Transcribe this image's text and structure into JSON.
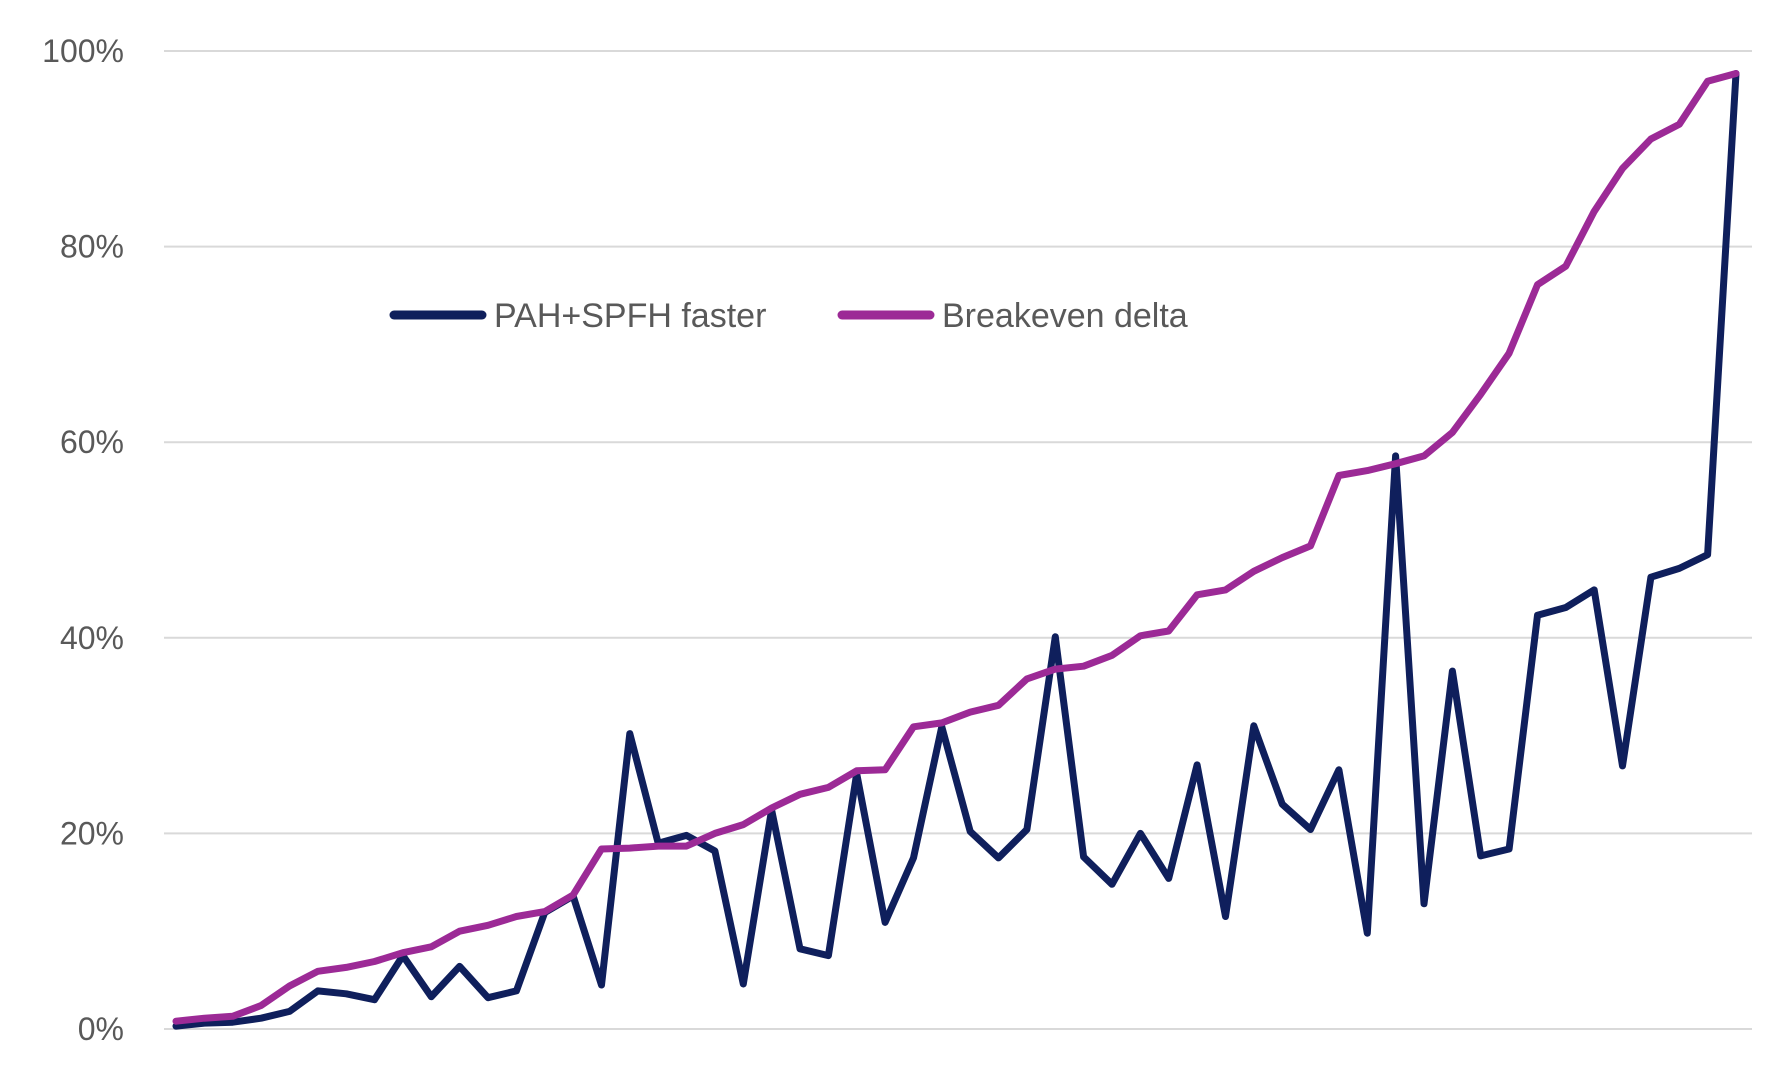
{
  "chart_data": {
    "type": "line",
    "title": "",
    "xlabel": "",
    "ylabel": "",
    "ylim": [
      0,
      100
    ],
    "y_ticks": [
      "0%",
      "20%",
      "40%",
      "60%",
      "80%",
      "100%"
    ],
    "y_tick_values": [
      0,
      20,
      40,
      60,
      80,
      100
    ],
    "grid": true,
    "legend_position": "upper-left-inside",
    "series": [
      {
        "name": "PAH+SPFH faster",
        "color": "#0f1f5c",
        "values": [
          0.3,
          0.6,
          0.7,
          1.1,
          1.8,
          3.9,
          3.6,
          3.0,
          7.5,
          3.3,
          6.4,
          3.2,
          3.9,
          11.9,
          13.6,
          4.5,
          30.2,
          19.0,
          19.8,
          18.2,
          4.6,
          22.4,
          8.2,
          7.5,
          26.1,
          10.9,
          17.5,
          30.9,
          20.2,
          17.5,
          20.4,
          40.1,
          17.6,
          14.8,
          20.0,
          15.4,
          27.0,
          11.5,
          31.0,
          23.0,
          20.4,
          26.5,
          9.8,
          58.6,
          12.8,
          36.6,
          17.7,
          18.4,
          42.3,
          43.1,
          44.9,
          26.9,
          46.2,
          47.1,
          48.5,
          97.7
        ]
      },
      {
        "name": "Breakeven delta",
        "color": "#9c2a96",
        "values": [
          0.8,
          1.1,
          1.3,
          2.4,
          4.4,
          5.9,
          6.3,
          6.9,
          7.8,
          8.4,
          10.0,
          10.6,
          11.5,
          12.0,
          13.7,
          18.4,
          18.5,
          18.7,
          18.7,
          20.0,
          20.9,
          22.6,
          24.0,
          24.7,
          26.4,
          26.5,
          30.9,
          31.3,
          32.4,
          33.1,
          35.8,
          36.8,
          37.1,
          38.2,
          40.2,
          40.7,
          44.4,
          44.9,
          46.8,
          48.2,
          49.4,
          56.6,
          57.1,
          57.8,
          58.6,
          61.0,
          64.9,
          69.1,
          76.1,
          78.0,
          83.6,
          88.0,
          91.0,
          92.5,
          96.9,
          97.7
        ]
      }
    ]
  }
}
